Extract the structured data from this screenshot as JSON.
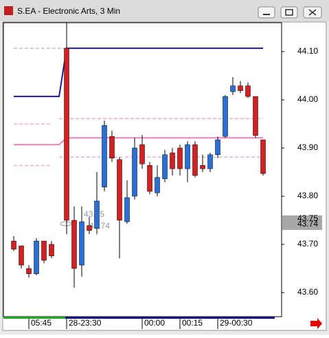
{
  "window": {
    "title": "S.EA - Electronic Arts, 3 Min"
  },
  "chart_data": {
    "type": "candlestick",
    "categories": [
      null,
      null,
      "05:45",
      null,
      null,
      null,
      null,
      "28-23:30",
      null,
      null,
      null,
      null,
      null,
      null,
      null,
      null,
      null,
      "00:00",
      null,
      null,
      null,
      null,
      "00:15",
      null,
      null,
      null,
      null,
      "29-00:30",
      null,
      null,
      null,
      null,
      null,
      null
    ],
    "open": [
      43.707,
      43.697,
      43.65,
      43.639,
      43.707,
      43.7,
      null,
      44.107,
      43.75,
      43.657,
      43.739,
      43.733,
      43.819,
      43.924,
      43.876,
      43.747,
      43.8,
      43.907,
      43.864,
      43.807,
      43.836,
      43.89,
      43.9,
      43.857,
      43.907,
      43.864,
      43.857,
      43.886,
      43.924,
      44.017,
      44.029,
      44.029,
      44.007,
      43.917
    ],
    "high": [
      43.717,
      43.697,
      43.657,
      43.713,
      43.707,
      43.707,
      null,
      44.16,
      43.779,
      43.779,
      43.757,
      43.85,
      43.957,
      43.936,
      43.881,
      43.833,
      43.921,
      43.927,
      43.871,
      43.864,
      43.896,
      43.9,
      43.907,
      43.914,
      43.914,
      43.886,
      43.89,
      43.924,
      44.01,
      44.047,
      44.039,
      44.036,
      44.007,
      43.917
    ],
    "low": [
      43.686,
      43.65,
      43.631,
      43.636,
      43.661,
      43.671,
      null,
      43.721,
      43.61,
      43.633,
      43.721,
      43.721,
      43.81,
      43.871,
      43.671,
      43.743,
      43.793,
      43.857,
      43.804,
      43.8,
      43.829,
      43.843,
      43.843,
      43.829,
      43.839,
      43.85,
      43.85,
      43.879,
      43.921,
      44.01,
      44.014,
      44.004,
      43.921,
      43.843
    ],
    "close": [
      43.69,
      43.657,
      43.639,
      43.707,
      43.667,
      43.676,
      null,
      43.75,
      43.65,
      43.747,
      43.729,
      43.79,
      43.947,
      43.879,
      43.75,
      43.797,
      43.9,
      43.867,
      43.81,
      43.839,
      43.886,
      43.857,
      43.857,
      43.907,
      43.843,
      43.857,
      43.886,
      43.917,
      44.007,
      44.029,
      44.019,
      44.007,
      43.926,
      43.847
    ],
    "up_color": "#2a6fd6",
    "down_color": "#d42020",
    "lines": [
      {
        "color": "#1a1a9a",
        "dashed": false,
        "values": [
          44.007,
          44.007,
          44.007,
          44.007,
          44.007,
          44.007,
          44.007,
          44.107,
          44.107,
          44.107,
          44.107,
          44.107,
          44.107,
          44.107,
          44.107,
          44.107,
          44.107,
          44.107,
          44.107,
          44.107,
          44.107,
          44.107,
          44.107,
          44.107,
          44.107,
          44.107,
          44.107,
          44.107,
          44.107,
          44.107,
          44.107,
          44.107,
          44.107,
          44.107
        ]
      },
      {
        "color": "#f080c0",
        "dashed": false,
        "values": [
          43.907,
          43.907,
          43.907,
          43.907,
          43.907,
          43.907,
          43.907,
          43.921,
          43.921,
          43.921,
          43.921,
          43.921,
          43.921,
          43.921,
          43.921,
          43.921,
          43.921,
          43.921,
          43.921,
          43.921,
          43.921,
          43.921,
          43.921,
          43.921,
          43.921,
          43.921,
          43.921,
          43.921,
          43.921,
          43.921,
          43.921,
          43.921,
          43.921,
          43.921
        ]
      },
      {
        "color": "#a0a0a0",
        "dashed": true,
        "values": [
          44.107,
          44.107,
          44.107,
          44.107,
          44.107,
          44.107,
          44.107,
          44.107,
          null,
          null,
          null,
          null,
          null,
          null,
          null,
          null,
          null,
          null,
          null,
          null,
          null,
          null,
          null,
          null,
          null,
          null,
          null,
          null,
          null,
          null,
          null,
          null,
          null,
          null
        ]
      },
      {
        "color": "#f080c0",
        "dashed": true,
        "values": [
          43.95,
          43.95,
          43.95,
          43.95,
          43.95,
          43.95,
          null,
          null,
          null,
          null,
          null,
          null,
          null,
          null,
          null,
          null,
          null,
          null,
          null,
          null,
          null,
          null,
          null,
          null,
          null,
          null,
          null,
          null,
          null,
          null,
          null,
          null,
          null,
          null
        ]
      },
      {
        "color": "#f080c0",
        "dashed": true,
        "values": [
          43.864,
          43.864,
          43.864,
          43.864,
          43.864,
          43.864,
          null,
          null,
          null,
          null,
          null,
          null,
          null,
          null,
          null,
          null,
          null,
          null,
          null,
          null,
          null,
          null,
          null,
          null,
          null,
          null,
          null,
          null,
          null,
          null,
          null,
          null,
          null,
          null
        ]
      },
      {
        "color": "#f080c0",
        "dashed": true,
        "values": [
          null,
          null,
          null,
          null,
          null,
          null,
          43.961,
          43.961,
          43.961,
          43.961,
          43.961,
          43.961,
          43.961,
          43.961,
          43.961,
          43.961,
          43.961,
          43.961,
          43.961,
          43.961,
          43.961,
          43.961,
          43.961,
          43.961,
          43.961,
          43.961,
          43.961,
          43.961,
          43.961,
          43.961,
          43.961,
          43.961,
          43.961,
          43.961
        ]
      },
      {
        "color": "#d890e0",
        "dashed": true,
        "values": [
          null,
          null,
          null,
          null,
          null,
          null,
          43.881,
          43.881,
          43.881,
          43.881,
          43.881,
          43.881,
          43.881,
          43.881,
          43.881,
          43.881,
          43.881,
          43.881,
          43.881,
          43.881,
          43.881,
          43.881,
          43.881,
          43.881,
          43.881,
          43.881,
          43.881,
          43.881,
          43.881,
          43.881,
          43.881,
          43.881,
          43.881,
          43.881
        ]
      }
    ],
    "annotations": [
      {
        "value": 43.75,
        "label": "43.75"
      },
      {
        "value": 43.74,
        "label": "43.74"
      }
    ],
    "price_tags": [
      {
        "value": 43.75,
        "label": "43.75"
      },
      {
        "value": 43.74,
        "label": "43.74"
      }
    ],
    "ylim": [
      43.55,
      44.16
    ],
    "yticks": [
      {
        "value": 43.6,
        "label": "43.60"
      },
      {
        "value": 43.7,
        "label": "43.70"
      },
      {
        "value": 43.8,
        "label": "43.80"
      },
      {
        "value": 43.9,
        "label": "43.90"
      },
      {
        "value": 44.0,
        "label": "44.00"
      },
      {
        "value": 44.1,
        "label": "44.10"
      }
    ]
  }
}
